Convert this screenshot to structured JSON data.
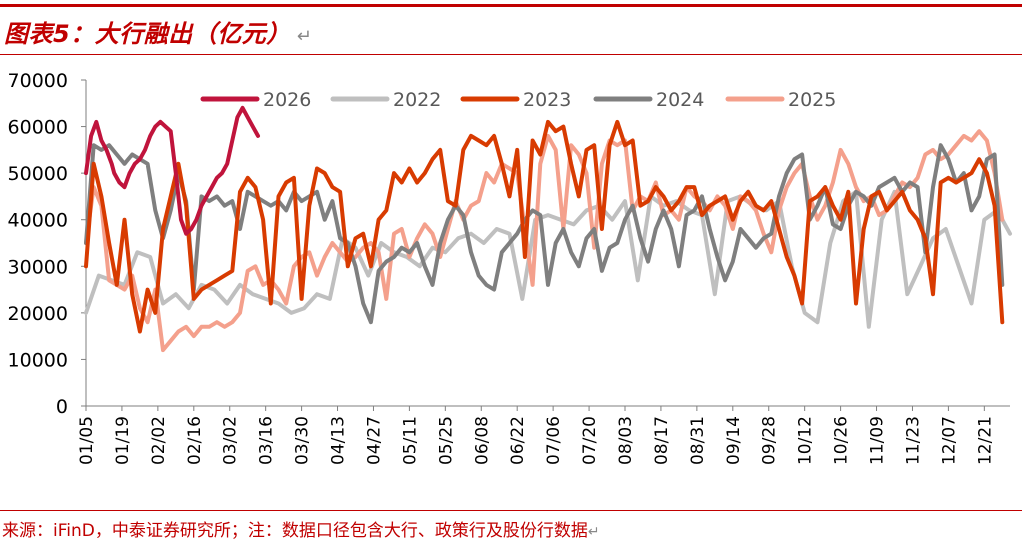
{
  "header": {
    "title": "图表5：大行融出（亿元）",
    "return_mark": "↵"
  },
  "footer": {
    "source": "来源：iFinD，中泰证券研究所；注：数据口径包含大行、政策行及股份行数据",
    "return_mark": "↵"
  },
  "chart_data": {
    "type": "line",
    "title": "",
    "xlabel": "",
    "ylabel": "",
    "ylim": [
      0,
      70000
    ],
    "yticks": [
      0,
      10000,
      20000,
      30000,
      40000,
      50000,
      60000,
      70000
    ],
    "xticks": [
      "01/05",
      "01/19",
      "02/02",
      "02/16",
      "03/02",
      "03/16",
      "03/30",
      "04/13",
      "04/27",
      "05/11",
      "05/25",
      "06/08",
      "06/22",
      "07/06",
      "07/20",
      "08/03",
      "08/17",
      "08/31",
      "09/14",
      "09/28",
      "10/12",
      "10/26",
      "11/09",
      "11/23",
      "12/07",
      "12/21"
    ],
    "x_unit": "day_of_year",
    "xlim": [
      5,
      365
    ],
    "legend_position": "top",
    "grid": false,
    "series": [
      {
        "name": "2026",
        "color": "#c0143c",
        "x": [
          5,
          7,
          9,
          11,
          13,
          15,
          16,
          18,
          20,
          22,
          24,
          26,
          28,
          30,
          32,
          34,
          36,
          38,
          40,
          42,
          44,
          46,
          48,
          50,
          52,
          54,
          56,
          58,
          60,
          62,
          64,
          66,
          68,
          70,
          72
        ],
        "y": [
          50000,
          58000,
          61000,
          57000,
          55000,
          52000,
          50000,
          48000,
          47000,
          50000,
          52000,
          53000,
          55000,
          58000,
          60000,
          61000,
          60000,
          59000,
          50000,
          40000,
          37000,
          38000,
          40000,
          43000,
          45000,
          47000,
          49000,
          50000,
          52000,
          57000,
          62000,
          64000,
          62000,
          60000,
          58000
        ]
      },
      {
        "name": "2022",
        "color": "#bfbfbf",
        "x": [
          5,
          10,
          15,
          20,
          25,
          30,
          35,
          40,
          45,
          50,
          55,
          60,
          65,
          70,
          75,
          80,
          85,
          90,
          95,
          100,
          105,
          110,
          115,
          120,
          125,
          130,
          135,
          140,
          145,
          150,
          155,
          160,
          165,
          170,
          175,
          180,
          185,
          190,
          195,
          200,
          205,
          210,
          215,
          220,
          225,
          230,
          235,
          240,
          245,
          250,
          255,
          260,
          265,
          270,
          275,
          280,
          285,
          290,
          295,
          300,
          305,
          310,
          315,
          320,
          325,
          330,
          335,
          340,
          345,
          350,
          355,
          360,
          365
        ],
        "y": [
          20000,
          28000,
          27000,
          26000,
          33000,
          32000,
          22000,
          24000,
          21000,
          26000,
          25000,
          22000,
          26000,
          24000,
          23000,
          22000,
          20000,
          21000,
          24000,
          23000,
          36000,
          34000,
          28000,
          35000,
          33000,
          32000,
          30000,
          34000,
          33000,
          36000,
          37000,
          35000,
          38000,
          37000,
          23000,
          40000,
          41000,
          40000,
          39000,
          42000,
          43000,
          40000,
          44000,
          27000,
          45000,
          43000,
          44000,
          42000,
          41000,
          24000,
          44000,
          45000,
          43000,
          42000,
          44000,
          30000,
          20000,
          18000,
          35000,
          44000,
          46000,
          17000,
          40000,
          46000,
          24000,
          30000,
          36000,
          38000,
          30000,
          22000,
          40000,
          42000,
          37000
        ]
      },
      {
        "name": "2023",
        "color": "#d83b01",
        "x": [
          5,
          8,
          11,
          14,
          17,
          20,
          23,
          26,
          29,
          32,
          35,
          38,
          41,
          44,
          47,
          50,
          53,
          56,
          59,
          62,
          65,
          68,
          71,
          74,
          77,
          80,
          83,
          86,
          89,
          92,
          95,
          98,
          101,
          104,
          107,
          110,
          113,
          116,
          119,
          122,
          125,
          128,
          131,
          134,
          137,
          140,
          143,
          146,
          149,
          152,
          155,
          158,
          161,
          164,
          167,
          170,
          173,
          176,
          179,
          182,
          185,
          188,
          191,
          194,
          197,
          200,
          203,
          206,
          209,
          212,
          215,
          218,
          221,
          224,
          227,
          230,
          233,
          236,
          239,
          242,
          245,
          248,
          251,
          254,
          257,
          260,
          263,
          266,
          269,
          272,
          275,
          278,
          281,
          284,
          287,
          290,
          293,
          296,
          299,
          302,
          305,
          308,
          311,
          314,
          317,
          320,
          323,
          326,
          329,
          332,
          335,
          338,
          341,
          344,
          347,
          350,
          353,
          356,
          359,
          362
        ],
        "y": [
          30000,
          52000,
          45000,
          35000,
          26000,
          40000,
          24000,
          16000,
          25000,
          20000,
          38000,
          45000,
          52000,
          43000,
          23000,
          25000,
          26000,
          27000,
          28000,
          29000,
          46000,
          49000,
          47000,
          40000,
          22000,
          45000,
          48000,
          49000,
          23000,
          43000,
          51000,
          50000,
          47000,
          46000,
          30000,
          36000,
          37000,
          30000,
          40000,
          42000,
          50000,
          48000,
          51000,
          48000,
          50000,
          53000,
          55000,
          44000,
          43000,
          55000,
          58000,
          57000,
          56000,
          58000,
          52000,
          45000,
          55000,
          32000,
          57000,
          54000,
          61000,
          59000,
          60000,
          52000,
          45000,
          55000,
          56000,
          38000,
          56000,
          61000,
          56000,
          57000,
          43000,
          44000,
          47000,
          45000,
          42000,
          44000,
          47000,
          47000,
          41000,
          43000,
          44000,
          45000,
          40000,
          44000,
          46000,
          43000,
          42000,
          44000,
          38000,
          32000,
          28000,
          22000,
          44000,
          45000,
          47000,
          43000,
          40000,
          46000,
          22000,
          38000,
          45000,
          46000,
          42000,
          44000,
          46000,
          42000,
          40000,
          36000,
          24000,
          48000,
          49000,
          48000,
          49000,
          50000,
          53000,
          50000,
          43000,
          18000
        ]
      },
      {
        "name": "2024",
        "color": "#7f7f7f",
        "x": [
          5,
          8,
          11,
          14,
          17,
          20,
          23,
          26,
          29,
          32,
          35,
          38,
          41,
          44,
          47,
          50,
          53,
          56,
          59,
          62,
          65,
          68,
          71,
          74,
          77,
          80,
          83,
          86,
          89,
          92,
          95,
          98,
          101,
          104,
          107,
          110,
          113,
          116,
          119,
          122,
          125,
          128,
          131,
          134,
          137,
          140,
          143,
          146,
          149,
          152,
          155,
          158,
          161,
          164,
          167,
          170,
          173,
          176,
          179,
          182,
          185,
          188,
          191,
          194,
          197,
          200,
          203,
          206,
          209,
          212,
          215,
          218,
          221,
          224,
          227,
          230,
          233,
          236,
          239,
          242,
          245,
          248,
          251,
          254,
          257,
          260,
          263,
          266,
          269,
          272,
          275,
          278,
          281,
          284,
          287,
          290,
          293,
          296,
          299,
          302,
          305,
          308,
          311,
          314,
          317,
          320,
          323,
          326,
          329,
          332,
          335,
          338,
          341,
          344,
          347,
          350,
          353,
          356,
          359,
          362
        ],
        "y": [
          35000,
          56000,
          55000,
          56000,
          54000,
          52000,
          54000,
          53000,
          52000,
          42000,
          36000,
          42000,
          50000,
          44000,
          25000,
          45000,
          44000,
          45000,
          43000,
          44000,
          38000,
          46000,
          45000,
          44000,
          43000,
          44000,
          42000,
          46000,
          44000,
          45000,
          46000,
          40000,
          44000,
          36000,
          35000,
          30000,
          22000,
          18000,
          29000,
          31000,
          32000,
          34000,
          33000,
          35000,
          30000,
          26000,
          35000,
          40000,
          43000,
          41000,
          33000,
          28000,
          26000,
          25000,
          33000,
          35000,
          37000,
          40000,
          42000,
          41000,
          26000,
          35000,
          38000,
          33000,
          30000,
          36000,
          38000,
          29000,
          34000,
          35000,
          40000,
          43000,
          36000,
          31000,
          38000,
          42000,
          38000,
          30000,
          41000,
          42000,
          45000,
          38000,
          32000,
          27000,
          31000,
          38000,
          36000,
          34000,
          36000,
          37000,
          45000,
          50000,
          53000,
          54000,
          40000,
          43000,
          47000,
          39000,
          38000,
          43000,
          46000,
          45000,
          43000,
          47000,
          48000,
          49000,
          46000,
          48000,
          47000,
          33000,
          47000,
          56000,
          53000,
          48000,
          50000,
          42000,
          45000,
          53000,
          54000,
          26000
        ]
      },
      {
        "name": "2025",
        "color": "#f4a08c",
        "x": [
          5,
          8,
          11,
          14,
          17,
          20,
          23,
          26,
          29,
          32,
          35,
          38,
          41,
          44,
          47,
          50,
          53,
          56,
          59,
          62,
          65,
          68,
          71,
          74,
          77,
          80,
          83,
          86,
          89,
          92,
          95,
          98,
          101,
          104,
          107,
          110,
          113,
          116,
          119,
          122,
          125,
          128,
          131,
          134,
          137,
          140,
          143,
          146,
          149,
          152,
          155,
          158,
          161,
          164,
          167,
          170,
          173,
          176,
          179,
          182,
          185,
          188,
          191,
          194,
          197,
          200,
          203,
          206,
          209,
          212,
          215,
          218,
          221,
          224,
          227,
          230,
          233,
          236,
          239,
          242,
          245,
          248,
          251,
          254,
          257,
          260,
          263,
          266,
          269,
          272,
          275,
          278,
          281,
          284,
          287,
          290,
          293,
          296,
          299,
          302,
          305,
          308,
          311,
          314,
          317,
          320,
          323,
          326,
          329,
          332,
          335,
          338,
          341,
          344,
          347,
          350,
          353,
          356,
          359,
          362
        ],
        "y": [
          35000,
          47000,
          43000,
          27000,
          26000,
          25000,
          28000,
          21000,
          18000,
          25000,
          12000,
          14000,
          16000,
          17000,
          15000,
          17000,
          17000,
          18000,
          17000,
          18000,
          20000,
          29000,
          30000,
          26000,
          27000,
          25000,
          22000,
          30000,
          32000,
          33000,
          28000,
          32000,
          35000,
          33000,
          31000,
          32000,
          34000,
          35000,
          33000,
          23000,
          37000,
          38000,
          32000,
          36000,
          39000,
          37000,
          32000,
          38000,
          44000,
          40000,
          43000,
          44000,
          50000,
          48000,
          52000,
          51000,
          50000,
          38000,
          26000,
          52000,
          58000,
          55000,
          38000,
          56000,
          54000,
          50000,
          34000,
          52000,
          57000,
          56000,
          57000,
          42000,
          45000,
          44000,
          48000,
          41000,
          42000,
          40000,
          47000,
          45000,
          44000,
          42000,
          45000,
          43000,
          38000,
          45000,
          44000,
          42000,
          37000,
          33000,
          42000,
          47000,
          50000,
          52000,
          45000,
          40000,
          43000,
          48000,
          55000,
          52000,
          47000,
          44000,
          45000,
          41000,
          42000,
          45000,
          48000,
          47000,
          49000,
          54000,
          55000,
          53000,
          54000,
          56000,
          58000,
          57000,
          59000,
          57000,
          50000,
          40000
        ]
      }
    ]
  }
}
